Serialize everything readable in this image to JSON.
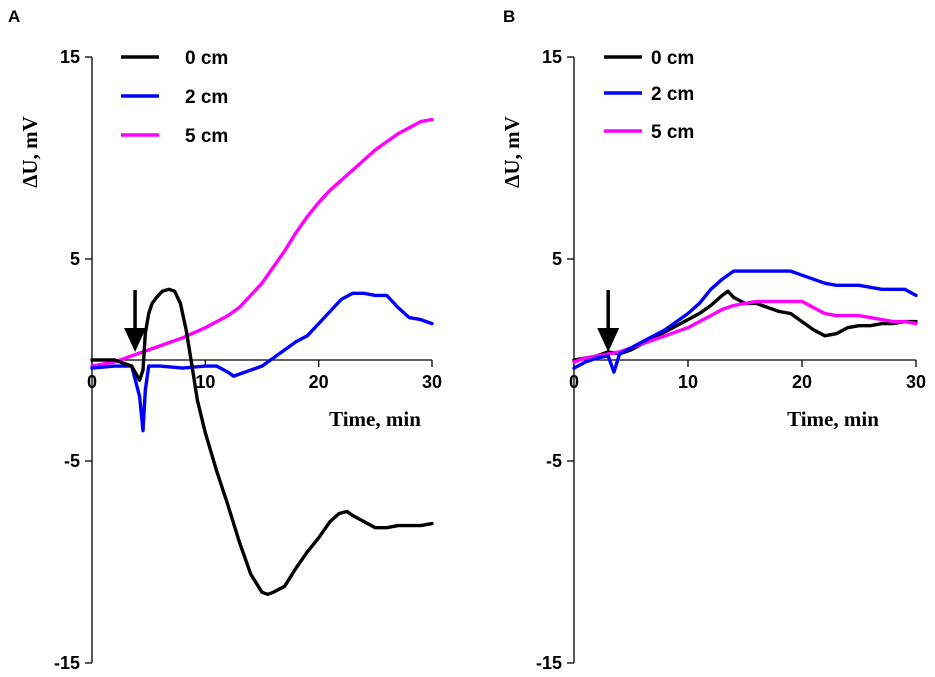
{
  "chart_data": [
    {
      "panel_label": "A",
      "type": "line",
      "xlabel": "Time, min",
      "ylabel": "ΔU, mV",
      "xlim": [
        0,
        30
      ],
      "ylim": [
        -15,
        15
      ],
      "x_ticks": [
        0,
        10,
        20,
        30
      ],
      "x_tick_labels": [
        "0",
        "10",
        "20",
        "30"
      ],
      "y_ticks": [
        15,
        5,
        -5,
        -15
      ],
      "y_tick_labels": [
        "15",
        "5",
        "-5",
        "-15"
      ],
      "annotation": {
        "type": "arrow",
        "x": 3.8,
        "label": ""
      },
      "series": [
        {
          "name": "0 cm",
          "color": "#000000",
          "x": [
            0,
            2,
            3.5,
            4.2,
            4.5,
            4.7,
            5.0,
            5.3,
            5.7,
            6.2,
            6.8,
            7.3,
            7.8,
            8.3,
            8.8,
            9.3,
            10,
            11,
            12,
            13,
            14,
            15,
            15.5,
            16,
            17,
            18,
            19,
            20,
            21,
            21.8,
            22.5,
            23,
            24,
            25,
            26,
            27,
            28,
            29,
            30
          ],
          "y": [
            0,
            0,
            -0.3,
            -1.0,
            -0.5,
            1.3,
            2.3,
            2.8,
            3.1,
            3.4,
            3.5,
            3.4,
            2.8,
            1.5,
            -0.2,
            -2.0,
            -3.6,
            -5.5,
            -7.2,
            -9.0,
            -10.6,
            -11.5,
            -11.6,
            -11.5,
            -11.2,
            -10.3,
            -9.5,
            -8.8,
            -8.0,
            -7.6,
            -7.5,
            -7.7,
            -8.0,
            -8.3,
            -8.3,
            -8.2,
            -8.2,
            -8.2,
            -8.1
          ]
        },
        {
          "name": "2 cm",
          "color": "#0000ff",
          "x": [
            0,
            2,
            3.5,
            4.2,
            4.5,
            4.7,
            5.0,
            6,
            8,
            10,
            11,
            12,
            12.5,
            13,
            14,
            15,
            16,
            17,
            18,
            19,
            20,
            21,
            22,
            23,
            24,
            25,
            26,
            27,
            28,
            29,
            30
          ],
          "y": [
            -0.4,
            -0.3,
            -0.3,
            -1.8,
            -3.5,
            -1.5,
            -0.3,
            -0.3,
            -0.4,
            -0.3,
            -0.3,
            -0.6,
            -0.8,
            -0.7,
            -0.5,
            -0.3,
            0.1,
            0.5,
            0.9,
            1.2,
            1.8,
            2.4,
            3.0,
            3.3,
            3.3,
            3.2,
            3.2,
            2.6,
            2.1,
            2.0,
            1.8
          ]
        },
        {
          "name": "5 cm",
          "color": "#ff00ff",
          "x": [
            0,
            2,
            4,
            6,
            8,
            10,
            12,
            13,
            14,
            15,
            16,
            17,
            18,
            19,
            20,
            21,
            22,
            23,
            24,
            25,
            26,
            27,
            28,
            29,
            30
          ],
          "y": [
            -0.3,
            -0.1,
            0.3,
            0.7,
            1.1,
            1.6,
            2.2,
            2.6,
            3.2,
            3.8,
            4.6,
            5.4,
            6.3,
            7.1,
            7.8,
            8.4,
            8.9,
            9.4,
            9.9,
            10.4,
            10.8,
            11.2,
            11.5,
            11.8,
            11.9
          ]
        }
      ]
    },
    {
      "panel_label": "B",
      "type": "line",
      "xlabel": "Time, min",
      "ylabel": "ΔU, mV",
      "xlim": [
        0,
        30
      ],
      "ylim": [
        -15,
        15
      ],
      "x_ticks": [
        0,
        10,
        20,
        30
      ],
      "x_tick_labels": [
        "0",
        "10",
        "20",
        "30"
      ],
      "y_ticks": [
        15,
        5,
        -5,
        -15
      ],
      "y_tick_labels": [
        "15",
        "5",
        "-5",
        "-15"
      ],
      "annotation": {
        "type": "arrow",
        "x": 3.0,
        "label": ""
      },
      "series": [
        {
          "name": "0 cm",
          "color": "#000000",
          "x": [
            0,
            1,
            2,
            3,
            4,
            5,
            6,
            7,
            8,
            9,
            10,
            11,
            12,
            13,
            13.5,
            14,
            15,
            16,
            17,
            18,
            19,
            20,
            21,
            22,
            23,
            24,
            25,
            26,
            27,
            28,
            29,
            30
          ],
          "y": [
            0,
            0.1,
            0.2,
            0.4,
            0.3,
            0.5,
            0.8,
            1.1,
            1.4,
            1.7,
            2.0,
            2.3,
            2.7,
            3.2,
            3.4,
            3.1,
            2.8,
            2.8,
            2.6,
            2.4,
            2.3,
            1.9,
            1.5,
            1.2,
            1.3,
            1.6,
            1.7,
            1.7,
            1.8,
            1.8,
            1.9,
            1.9
          ]
        },
        {
          "name": "2 cm",
          "color": "#0000ff",
          "x": [
            0,
            1,
            2,
            3,
            3.5,
            4,
            5,
            6,
            7,
            8,
            9,
            10,
            11,
            12,
            13,
            14,
            15,
            16,
            17,
            18,
            19,
            20,
            21,
            22,
            23,
            24,
            25,
            26,
            27,
            28,
            29,
            30
          ],
          "y": [
            -0.4,
            -0.1,
            0.1,
            0.2,
            -0.6,
            0.3,
            0.6,
            0.9,
            1.2,
            1.5,
            1.9,
            2.3,
            2.8,
            3.5,
            4.0,
            4.4,
            4.4,
            4.4,
            4.4,
            4.4,
            4.4,
            4.2,
            4.0,
            3.8,
            3.7,
            3.7,
            3.7,
            3.6,
            3.5,
            3.5,
            3.5,
            3.2
          ]
        },
        {
          "name": "5 cm",
          "color": "#ff00ff",
          "x": [
            0,
            1,
            2,
            3,
            4,
            5,
            6,
            7,
            8,
            9,
            10,
            11,
            12,
            13,
            14,
            15,
            16,
            17,
            18,
            19,
            20,
            21,
            22,
            23,
            24,
            25,
            26,
            27,
            28,
            29,
            30
          ],
          "y": [
            -0.1,
            0.1,
            0.2,
            0.3,
            0.4,
            0.6,
            0.8,
            1.0,
            1.2,
            1.4,
            1.6,
            1.9,
            2.2,
            2.5,
            2.7,
            2.8,
            2.9,
            2.9,
            2.9,
            2.9,
            2.9,
            2.6,
            2.3,
            2.2,
            2.2,
            2.2,
            2.1,
            2.0,
            1.9,
            1.9,
            1.8
          ]
        }
      ]
    }
  ]
}
